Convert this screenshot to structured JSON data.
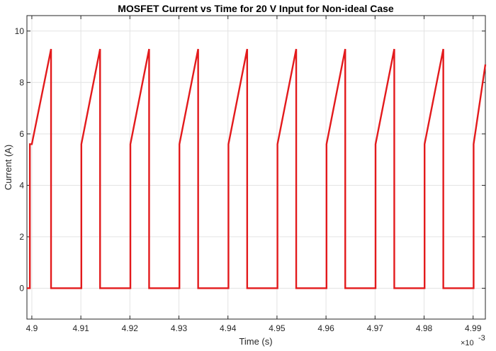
{
  "chart_data": {
    "type": "line",
    "title": "MOSFET Current vs Time for 20 V Input for Non-ideal Case",
    "xlabel": "Time (s)",
    "ylabel": "Current (A)",
    "x_exponent_label": "×10",
    "x_exponent_power": "-3",
    "xlim": [
      4.899,
      4.9925
    ],
    "ylim": [
      -1.2,
      10.6
    ],
    "grid": true,
    "x_ticks": [
      4.9,
      4.91,
      4.92,
      4.93,
      4.94,
      4.95,
      4.96,
      4.97,
      4.98,
      4.99
    ],
    "x_tick_labels": [
      "4.9",
      "4.91",
      "4.92",
      "4.93",
      "4.94",
      "4.95",
      "4.96",
      "4.97",
      "4.98",
      "4.99"
    ],
    "y_ticks": [
      0,
      2,
      4,
      6,
      8,
      10
    ],
    "y_tick_labels": [
      "0",
      "2",
      "4",
      "6",
      "8",
      "10"
    ],
    "series": [
      {
        "color": "#e31a1c",
        "x": [
          4.899,
          4.8996,
          4.8996,
          4.9,
          4.90392,
          4.90392,
          4.9101,
          4.9101,
          4.91392,
          4.91392,
          4.9201,
          4.9201,
          4.92392,
          4.92392,
          4.9301,
          4.9301,
          4.93392,
          4.93392,
          4.9401,
          4.9401,
          4.94392,
          4.94392,
          4.9501,
          4.9501,
          4.95392,
          4.95392,
          4.9601,
          4.9601,
          4.96392,
          4.96392,
          4.9701,
          4.9701,
          4.97392,
          4.97392,
          4.9801,
          4.9801,
          4.98392,
          4.98392,
          4.9901,
          4.9901,
          4.9925
        ],
        "y": [
          0,
          0,
          5.6,
          5.6,
          9.3,
          0,
          0,
          5.6,
          9.3,
          0,
          0,
          5.6,
          9.3,
          0,
          0,
          5.6,
          9.3,
          0,
          0,
          5.6,
          9.3,
          0,
          0,
          5.6,
          9.3,
          0,
          0,
          5.6,
          9.3,
          0,
          0,
          5.6,
          9.3,
          0,
          0,
          5.6,
          9.3,
          0,
          0,
          5.6,
          8.7
        ]
      }
    ]
  }
}
